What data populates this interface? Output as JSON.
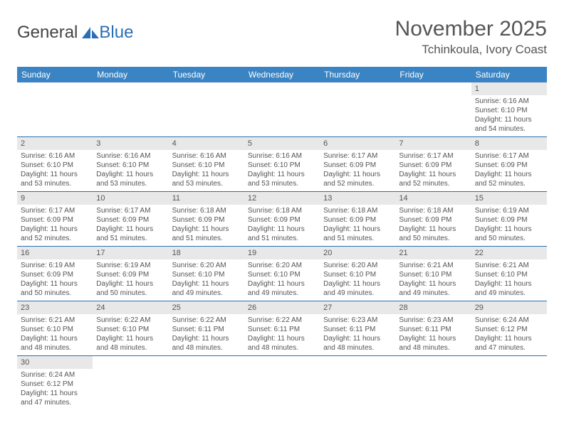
{
  "brand": {
    "part1": "General",
    "part2": "Blue"
  },
  "title": "November 2025",
  "location": "Tchinkoula, Ivory Coast",
  "colors": {
    "header_bg": "#3b84c4",
    "header_text": "#ffffff",
    "daynum_bg": "#e8e8e8",
    "text": "#555555",
    "rule": "#2a6fb5",
    "page_bg": "#ffffff"
  },
  "daysOfWeek": [
    "Sunday",
    "Monday",
    "Tuesday",
    "Wednesday",
    "Thursday",
    "Friday",
    "Saturday"
  ],
  "weeks": [
    [
      null,
      null,
      null,
      null,
      null,
      null,
      {
        "n": "1",
        "sr": "6:16 AM",
        "ss": "6:10 PM",
        "dl": "11 hours and 54 minutes."
      }
    ],
    [
      {
        "n": "2",
        "sr": "6:16 AM",
        "ss": "6:10 PM",
        "dl": "11 hours and 53 minutes."
      },
      {
        "n": "3",
        "sr": "6:16 AM",
        "ss": "6:10 PM",
        "dl": "11 hours and 53 minutes."
      },
      {
        "n": "4",
        "sr": "6:16 AM",
        "ss": "6:10 PM",
        "dl": "11 hours and 53 minutes."
      },
      {
        "n": "5",
        "sr": "6:16 AM",
        "ss": "6:10 PM",
        "dl": "11 hours and 53 minutes."
      },
      {
        "n": "6",
        "sr": "6:17 AM",
        "ss": "6:09 PM",
        "dl": "11 hours and 52 minutes."
      },
      {
        "n": "7",
        "sr": "6:17 AM",
        "ss": "6:09 PM",
        "dl": "11 hours and 52 minutes."
      },
      {
        "n": "8",
        "sr": "6:17 AM",
        "ss": "6:09 PM",
        "dl": "11 hours and 52 minutes."
      }
    ],
    [
      {
        "n": "9",
        "sr": "6:17 AM",
        "ss": "6:09 PM",
        "dl": "11 hours and 52 minutes."
      },
      {
        "n": "10",
        "sr": "6:17 AM",
        "ss": "6:09 PM",
        "dl": "11 hours and 51 minutes."
      },
      {
        "n": "11",
        "sr": "6:18 AM",
        "ss": "6:09 PM",
        "dl": "11 hours and 51 minutes."
      },
      {
        "n": "12",
        "sr": "6:18 AM",
        "ss": "6:09 PM",
        "dl": "11 hours and 51 minutes."
      },
      {
        "n": "13",
        "sr": "6:18 AM",
        "ss": "6:09 PM",
        "dl": "11 hours and 51 minutes."
      },
      {
        "n": "14",
        "sr": "6:18 AM",
        "ss": "6:09 PM",
        "dl": "11 hours and 50 minutes."
      },
      {
        "n": "15",
        "sr": "6:19 AM",
        "ss": "6:09 PM",
        "dl": "11 hours and 50 minutes."
      }
    ],
    [
      {
        "n": "16",
        "sr": "6:19 AM",
        "ss": "6:09 PM",
        "dl": "11 hours and 50 minutes."
      },
      {
        "n": "17",
        "sr": "6:19 AM",
        "ss": "6:09 PM",
        "dl": "11 hours and 50 minutes."
      },
      {
        "n": "18",
        "sr": "6:20 AM",
        "ss": "6:10 PM",
        "dl": "11 hours and 49 minutes."
      },
      {
        "n": "19",
        "sr": "6:20 AM",
        "ss": "6:10 PM",
        "dl": "11 hours and 49 minutes."
      },
      {
        "n": "20",
        "sr": "6:20 AM",
        "ss": "6:10 PM",
        "dl": "11 hours and 49 minutes."
      },
      {
        "n": "21",
        "sr": "6:21 AM",
        "ss": "6:10 PM",
        "dl": "11 hours and 49 minutes."
      },
      {
        "n": "22",
        "sr": "6:21 AM",
        "ss": "6:10 PM",
        "dl": "11 hours and 49 minutes."
      }
    ],
    [
      {
        "n": "23",
        "sr": "6:21 AM",
        "ss": "6:10 PM",
        "dl": "11 hours and 48 minutes."
      },
      {
        "n": "24",
        "sr": "6:22 AM",
        "ss": "6:10 PM",
        "dl": "11 hours and 48 minutes."
      },
      {
        "n": "25",
        "sr": "6:22 AM",
        "ss": "6:11 PM",
        "dl": "11 hours and 48 minutes."
      },
      {
        "n": "26",
        "sr": "6:22 AM",
        "ss": "6:11 PM",
        "dl": "11 hours and 48 minutes."
      },
      {
        "n": "27",
        "sr": "6:23 AM",
        "ss": "6:11 PM",
        "dl": "11 hours and 48 minutes."
      },
      {
        "n": "28",
        "sr": "6:23 AM",
        "ss": "6:11 PM",
        "dl": "11 hours and 48 minutes."
      },
      {
        "n": "29",
        "sr": "6:24 AM",
        "ss": "6:12 PM",
        "dl": "11 hours and 47 minutes."
      }
    ],
    [
      {
        "n": "30",
        "sr": "6:24 AM",
        "ss": "6:12 PM",
        "dl": "11 hours and 47 minutes."
      },
      null,
      null,
      null,
      null,
      null,
      null
    ]
  ],
  "labels": {
    "sunrise": "Sunrise:",
    "sunset": "Sunset:",
    "daylight": "Daylight:"
  }
}
